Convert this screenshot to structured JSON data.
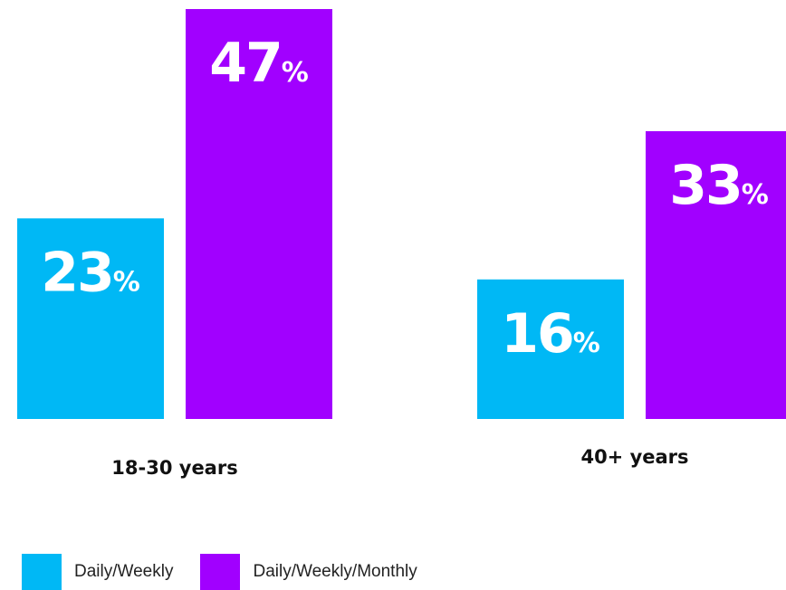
{
  "colors": {
    "series_0": "#00b8f5",
    "series_1": "#a100ff",
    "value_text": "#ffffff"
  },
  "chart_data": {
    "type": "bar",
    "categories": [
      "18-30 years",
      "40+ years"
    ],
    "series": [
      {
        "name": "Daily/Weekly",
        "values": [
          23,
          16
        ],
        "color": "#00b8f5"
      },
      {
        "name": "Daily/Weekly/Monthly",
        "values": [
          47,
          33
        ],
        "color": "#a100ff"
      }
    ],
    "value_suffix": "%",
    "ylim": [
      0,
      47
    ],
    "grid": false,
    "legend_position": "bottom-left",
    "title": "",
    "xlabel": "",
    "ylabel": ""
  }
}
